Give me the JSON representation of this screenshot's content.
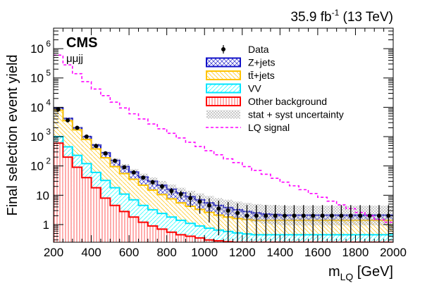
{
  "chart_data": {
    "type": "histogram",
    "lumi_label": "35.9 fb",
    "lumi_sup": "-1",
    "energy_label": "(13 TeV)",
    "experiment_label": "CMS",
    "channel_label": "μμjj",
    "xlabel_main": "m",
    "xlabel_sub": "LQ",
    "xlabel_unit": "[GeV]",
    "ylabel": "Final selection event yield",
    "xlim": [
      200,
      2000
    ],
    "ylim": [
      0.25,
      5000000
    ],
    "yscale": "log",
    "x_ticks": [
      200,
      400,
      600,
      800,
      1000,
      1200,
      1400,
      1600,
      1800,
      2000
    ],
    "y_ticks": [
      {
        "value": 1,
        "label": "1"
      },
      {
        "value": 10,
        "label": "10"
      },
      {
        "value": 100,
        "label": "10",
        "exp": "2"
      },
      {
        "value": 1000,
        "label": "10",
        "exp": "3"
      },
      {
        "value": 10000,
        "label": "10",
        "exp": "4"
      },
      {
        "value": 100000,
        "label": "10",
        "exp": "5"
      },
      {
        "value": 1000000,
        "label": "10",
        "exp": "6"
      }
    ],
    "bin_edges": [
      200,
      250,
      300,
      350,
      400,
      450,
      500,
      550,
      600,
      650,
      700,
      750,
      800,
      850,
      900,
      950,
      1000,
      1050,
      1100,
      1150,
      1200,
      1250,
      1300,
      1350,
      1400,
      1450,
      1500,
      1550,
      1600,
      1650,
      1700,
      1750,
      1800,
      1850,
      1900,
      1950,
      2000
    ],
    "stack_series": [
      {
        "name": "Other background",
        "color": "#ff0000",
        "values": [
          600,
          200,
          90,
          40,
          18,
          8,
          4.5,
          2.8,
          1.8,
          1.2,
          0.9,
          0.7,
          0.55,
          0.45,
          0.4,
          0.35,
          0.3,
          0.28,
          0.26,
          0.25,
          0.25,
          0.25,
          0.25,
          0.25,
          0.25,
          0.25,
          0.25,
          0.25,
          0.25,
          0.25,
          0.25,
          0.25,
          0.25,
          0.25,
          0.25,
          0.25
        ]
      },
      {
        "name": "VV",
        "color": "#00ffff",
        "values": [
          1000,
          450,
          230,
          120,
          60,
          32,
          18,
          11,
          7,
          4.5,
          3.2,
          2.4,
          1.8,
          1.4,
          1.1,
          0.9,
          0.75,
          0.65,
          0.58,
          0.52,
          0.48,
          0.45,
          0.45,
          0.45,
          0.45,
          0.45,
          0.45,
          0.45,
          0.45,
          0.45,
          0.45,
          0.45,
          0.45,
          0.45,
          0.45,
          0.45
        ]
      },
      {
        "name": "tt̄+jets",
        "color": "#ffcc00",
        "values": [
          8000,
          3500,
          1700,
          800,
          380,
          190,
          95,
          55,
          35,
          22,
          15,
          10.5,
          7.5,
          5.5,
          4.2,
          3.3,
          2.6,
          2.1,
          1.8,
          1.6,
          1.5,
          1.4,
          1.4,
          1.4,
          1.4,
          1.4,
          1.4,
          1.4,
          1.4,
          1.4,
          1.4,
          1.4,
          1.4,
          1.4,
          1.4,
          1.4
        ]
      },
      {
        "name": "Z+jets",
        "color": "#0000cc",
        "values": [
          9500,
          4200,
          2000,
          1000,
          520,
          280,
          155,
          95,
          62,
          42,
          30,
          22,
          16,
          12,
          9,
          7,
          5.5,
          4.5,
          3.8,
          3.2,
          2.8,
          2.5,
          2.3,
          2.2,
          2.1,
          2.1,
          2.1,
          2.1,
          2.1,
          2.1,
          2.1,
          2.1,
          2.1,
          2.1,
          2.1,
          2.1
        ]
      }
    ],
    "lq_signal": {
      "name": "LQ signal",
      "color": "#ff00ff",
      "values": [
        600000,
        280000,
        140000,
        75000,
        42000,
        25000,
        15000,
        9500,
        6000,
        4000,
        2700,
        1850,
        1300,
        900,
        640,
        460,
        330,
        240,
        175,
        130,
        95,
        70,
        52,
        38,
        28,
        21,
        15.5,
        11.5,
        8.5,
        6.3,
        4.7,
        3.5,
        2.6,
        2,
        1.5,
        1.2
      ]
    },
    "data_points": {
      "name": "Data",
      "x": [
        225,
        275,
        325,
        375,
        425,
        475,
        525,
        575,
        625,
        675,
        725,
        775,
        825,
        875,
        925,
        975,
        1025,
        1075,
        1125,
        1175,
        1225,
        1275,
        1325,
        1375,
        1425,
        1475,
        1525,
        1575,
        1625,
        1675,
        1725,
        1775,
        1825,
        1875,
        1925,
        1975
      ],
      "y": [
        8500,
        3600,
        2000,
        1000,
        480,
        270,
        150,
        90,
        60,
        40,
        28,
        20,
        14,
        11,
        8,
        6,
        4.5,
        3.5,
        3,
        2.5,
        2,
        2,
        2,
        2,
        2,
        2,
        2,
        2,
        2,
        2,
        2,
        2,
        2,
        2,
        2,
        2
      ]
    },
    "uncertainty": {
      "name": "stat + syst uncertainty",
      "rel_lo": [
        0.92,
        0.92,
        0.91,
        0.9,
        0.88,
        0.86,
        0.84,
        0.82,
        0.8,
        0.78,
        0.75,
        0.72,
        0.7,
        0.68,
        0.65,
        0.62,
        0.6,
        0.58,
        0.55,
        0.52,
        0.5,
        0.48,
        0.46,
        0.45,
        0.45,
        0.45,
        0.45,
        0.45,
        0.45,
        0.45,
        0.45,
        0.45,
        0.45,
        0.45,
        0.45,
        0.45
      ],
      "rel_hi": [
        1.08,
        1.08,
        1.09,
        1.1,
        1.12,
        1.14,
        1.18,
        1.22,
        1.26,
        1.3,
        1.35,
        1.4,
        1.45,
        1.5,
        1.58,
        1.65,
        1.72,
        1.78,
        1.85,
        1.9,
        1.95,
        2,
        2.05,
        2.1,
        2.1,
        2.1,
        2.1,
        2.1,
        2.1,
        2.1,
        2.1,
        2.1,
        2.1,
        2.1,
        2.1,
        2.1
      ]
    },
    "legend": {
      "placement": "top-right",
      "entries": [
        {
          "label": "Data",
          "kind": "data"
        },
        {
          "label": "Z+jets",
          "kind": "zjets"
        },
        {
          "label": "tt̄+jets",
          "kind": "ttbar"
        },
        {
          "label": "VV",
          "kind": "vv"
        },
        {
          "label": "Other background",
          "kind": "other"
        },
        {
          "label": "stat + syst uncertainty",
          "kind": "unc"
        },
        {
          "label": "LQ signal",
          "kind": "lq"
        }
      ]
    }
  }
}
